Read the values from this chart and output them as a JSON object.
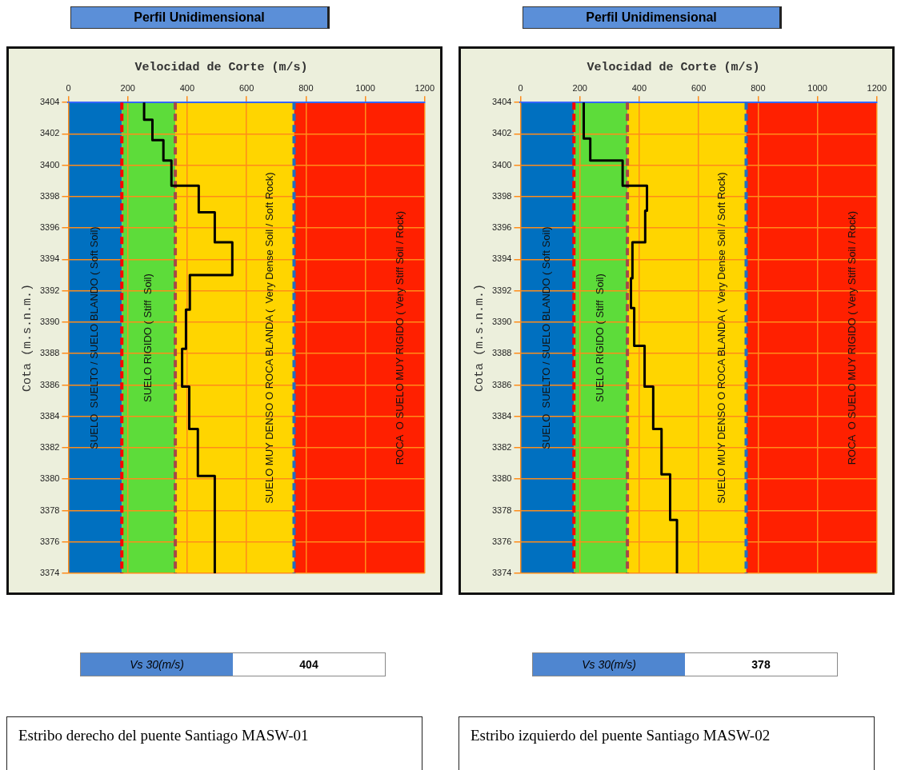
{
  "chart_data": [
    {
      "type": "line",
      "title": "Perfil Unidimensional",
      "xlabel": "Velocidad de Corte (m/s)",
      "ylabel": "Cota (m.s.n.m.)",
      "x": [
        255,
        255,
        283,
        283,
        320,
        320,
        347,
        347,
        439,
        439,
        493,
        493,
        552,
        552,
        409,
        409,
        396,
        396,
        383,
        383,
        407,
        407,
        436,
        436,
        493,
        493
      ],
      "values": [
        3404,
        3402.9,
        3402.9,
        3401.6,
        3401.6,
        3400.3,
        3400.3,
        3398.7,
        3398.7,
        3397,
        3397,
        3395.1,
        3395.1,
        3393,
        3393,
        3390.8,
        3390.8,
        3388.3,
        3388.3,
        3385.9,
        3385.9,
        3383.2,
        3383.2,
        3380.2,
        3380.2,
        3374
      ],
      "color": "#000000",
      "marker": "none",
      "line_style": "solid",
      "xlim": [
        0,
        1200
      ],
      "xticks": [
        0,
        200,
        400,
        600,
        800,
        1000,
        1200
      ],
      "ylim": [
        3374,
        3404
      ],
      "yticks": [
        3374,
        3376,
        3378,
        3380,
        3382,
        3384,
        3386,
        3388,
        3390,
        3392,
        3394,
        3396,
        3398,
        3400,
        3402,
        3404
      ],
      "grid": true,
      "legend": false,
      "bands": [
        {
          "axis": "x",
          "from": 0,
          "to": 180,
          "label": "SUELO  SUELTO / SUELO BLANDO ( Soft Soil)",
          "color": "#0070c0"
        },
        {
          "axis": "x",
          "from": 180,
          "to": 360,
          "label": "SUELO RIGIDO ( Stiff  Soil)",
          "color": "#5ddc3a"
        },
        {
          "axis": "x",
          "from": 360,
          "to": 760,
          "label": "SUELO MUY DENSO O ROCA BLANDA (  Very Dense Soil / Soft Rock)",
          "color": "#ffd500"
        },
        {
          "axis": "x",
          "from": 760,
          "to": 1200,
          "label": "ROCA  O SUELO MUY RIGIDO ( Very Stiff Soil / Rock)",
          "color": "#ff2000"
        }
      ],
      "ref_lines": [
        {
          "axis": "x",
          "value": 180,
          "color": "#ff0000",
          "line_style": "dashed"
        },
        {
          "axis": "x",
          "value": 360,
          "color": "#a84848",
          "line_style": "dashed"
        },
        {
          "axis": "x",
          "value": 760,
          "color": "#1f6fc0",
          "line_style": "dashed"
        }
      ],
      "annotations": [
        "Vs 30(m/s)",
        "404",
        "Estribo derecho del puente Santiago MASW-01"
      ]
    },
    {
      "type": "line",
      "title": "Perfil Unidimensional",
      "xlabel": "Velocidad de Corte (m/s)",
      "ylabel": "Cota (m.s.n.m.)",
      "x": [
        213,
        213,
        235,
        235,
        344,
        344,
        426,
        426,
        420,
        420,
        377,
        377,
        372,
        372,
        383,
        383,
        418,
        418,
        447,
        447,
        475,
        475,
        504,
        504,
        527,
        527
      ],
      "values": [
        3404,
        3401.7,
        3401.7,
        3400.3,
        3400.3,
        3398.7,
        3398.7,
        3397.1,
        3397.1,
        3395.1,
        3395.1,
        3392.8,
        3392.8,
        3390.9,
        3390.9,
        3388.5,
        3388.5,
        3385.9,
        3385.9,
        3383.2,
        3383.2,
        3380.3,
        3380.3,
        3377.4,
        3377.4,
        3374
      ],
      "color": "#000000",
      "marker": "none",
      "line_style": "solid",
      "xlim": [
        0,
        1200
      ],
      "xticks": [
        0,
        200,
        400,
        600,
        800,
        1000,
        1200
      ],
      "ylim": [
        3374,
        3404
      ],
      "yticks": [
        3374,
        3376,
        3378,
        3380,
        3382,
        3384,
        3386,
        3388,
        3390,
        3392,
        3394,
        3396,
        3398,
        3400,
        3402,
        3404
      ],
      "grid": true,
      "legend": false,
      "bands": [
        {
          "axis": "x",
          "from": 0,
          "to": 180,
          "label": "SUELO  SUELTO / SUELO BLANDO ( Soft Soil)",
          "color": "#0070c0"
        },
        {
          "axis": "x",
          "from": 180,
          "to": 360,
          "label": "SUELO RIGIDO ( Stiff  Soil)",
          "color": "#5ddc3a"
        },
        {
          "axis": "x",
          "from": 360,
          "to": 760,
          "label": "SUELO MUY DENSO O ROCA BLANDA (  Very Dense Soil / Soft Rock)",
          "color": "#ffd500"
        },
        {
          "axis": "x",
          "from": 760,
          "to": 1200,
          "label": "ROCA  O SUELO MUY RIGIDO ( Very Stiff Soil / Rock)",
          "color": "#ff2000"
        }
      ],
      "ref_lines": [
        {
          "axis": "x",
          "value": 180,
          "color": "#ff0000",
          "line_style": "dashed"
        },
        {
          "axis": "x",
          "value": 360,
          "color": "#a84848",
          "line_style": "dashed"
        },
        {
          "axis": "x",
          "value": 760,
          "color": "#1f6fc0",
          "line_style": "dashed"
        }
      ],
      "annotations": [
        "Vs 30(m/s)",
        "378",
        "Estribo izquierdo del puente Santiago MASW-02"
      ]
    }
  ]
}
